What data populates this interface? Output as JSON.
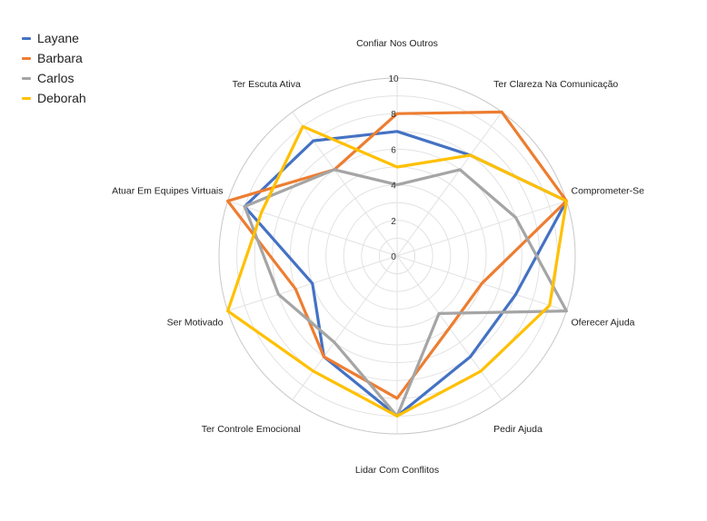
{
  "chart_data": {
    "type": "radar",
    "categories": [
      "Confiar Nos Outros",
      "Ter Clareza Na Comunicação",
      "Comprometer-Se",
      "Oferecer Ajuda",
      "Pedir Ajuda",
      "Lidar Com Conflitos",
      "Ter Controle Emocional",
      "Ser Motivado",
      "Atuar Em Equipes Virtuais",
      "Ter Escuta Ativa"
    ],
    "rlim": [
      0,
      10
    ],
    "ticks": [
      "0",
      "2",
      "4",
      "6",
      "8",
      "10"
    ],
    "grid": true,
    "legend_position": "top-left",
    "series": [
      {
        "name": "Layane",
        "color": "#4472C4",
        "values": [
          7,
          7,
          10,
          7,
          7,
          9,
          7,
          5,
          9,
          8
        ]
      },
      {
        "name": "Barbara",
        "color": "#ED7D31",
        "values": [
          8,
          10,
          10,
          5,
          5,
          8,
          7,
          6,
          10,
          6
        ]
      },
      {
        "name": "Carlos",
        "color": "#A5A5A5",
        "values": [
          4,
          6,
          7,
          10,
          4,
          9,
          6,
          7,
          9,
          6
        ]
      },
      {
        "name": "Deborah",
        "color": "#FFC000",
        "values": [
          5,
          7,
          10,
          9,
          8,
          9,
          8,
          10,
          8,
          9
        ]
      }
    ]
  }
}
